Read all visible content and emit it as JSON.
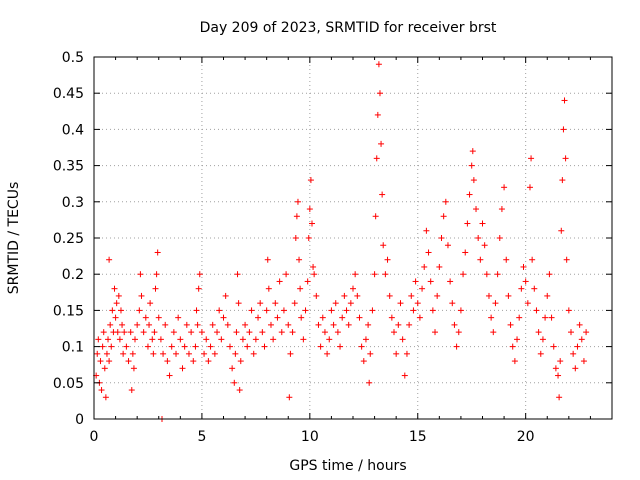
{
  "chart_data": {
    "type": "scatter",
    "title": "Day 209 of 2023, SRMTID for receiver brst",
    "xlabel": "GPS time / hours",
    "ylabel": "SRMTID / TECUs",
    "xlim": [
      0,
      24
    ],
    "ylim": [
      0,
      0.5
    ],
    "xticks": [
      0,
      5,
      10,
      15,
      20
    ],
    "xtick_labels": [
      "0",
      "5",
      "10",
      "15",
      "20"
    ],
    "yticks": [
      0,
      0.05,
      0.1,
      0.15,
      0.2,
      0.25,
      0.3,
      0.35,
      0.4,
      0.45,
      0.5
    ],
    "ytick_labels": [
      "0",
      "0.05",
      "0.1",
      "0.15",
      "0.2",
      "0.25",
      "0.3",
      "0.35",
      "0.4",
      "0.45",
      "0.5"
    ],
    "grid": true,
    "marker": "+",
    "series": [
      {
        "name": "SRMTID",
        "color": "#ff0000",
        "points": [
          [
            0.1,
            0.06
          ],
          [
            0.15,
            0.09
          ],
          [
            0.2,
            0.11
          ],
          [
            0.25,
            0.05
          ],
          [
            0.3,
            0.08
          ],
          [
            0.35,
            0.04
          ],
          [
            0.4,
            0.1
          ],
          [
            0.45,
            0.12
          ],
          [
            0.5,
            0.07
          ],
          [
            0.55,
            0.03
          ],
          [
            0.6,
            0.09
          ],
          [
            0.65,
            0.11
          ],
          [
            0.7,
            0.08
          ],
          [
            0.75,
            0.13
          ],
          [
            0.8,
            0.1
          ],
          [
            0.85,
            0.15
          ],
          [
            0.7,
            0.22
          ],
          [
            0.9,
            0.12
          ],
          [
            0.95,
            0.18
          ],
          [
            1.0,
            0.14
          ],
          [
            1.05,
            0.16
          ],
          [
            1.1,
            0.12
          ],
          [
            1.15,
            0.17
          ],
          [
            1.2,
            0.11
          ],
          [
            1.25,
            0.15
          ],
          [
            1.3,
            0.13
          ],
          [
            1.35,
            0.09
          ],
          [
            1.4,
            0.12
          ],
          [
            1.5,
            0.1
          ],
          [
            1.6,
            0.08
          ],
          [
            1.7,
            0.12
          ],
          [
            1.75,
            0.04
          ],
          [
            1.8,
            0.09
          ],
          [
            1.85,
            0.07
          ],
          [
            1.9,
            0.11
          ],
          [
            2.0,
            0.13
          ],
          [
            2.1,
            0.15
          ],
          [
            2.15,
            0.2
          ],
          [
            2.2,
            0.17
          ],
          [
            2.3,
            0.12
          ],
          [
            2.4,
            0.14
          ],
          [
            2.5,
            0.1
          ],
          [
            2.55,
            0.13
          ],
          [
            2.6,
            0.16
          ],
          [
            2.7,
            0.11
          ],
          [
            2.75,
            0.09
          ],
          [
            2.8,
            0.12
          ],
          [
            2.85,
            0.18
          ],
          [
            2.9,
            0.2
          ],
          [
            2.95,
            0.23
          ],
          [
            3.0,
            0.14
          ],
          [
            3.1,
            0.11
          ],
          [
            3.15,
            0.0
          ],
          [
            3.2,
            0.09
          ],
          [
            3.3,
            0.13
          ],
          [
            3.4,
            0.08
          ],
          [
            3.5,
            0.06
          ],
          [
            3.6,
            0.1
          ],
          [
            3.7,
            0.12
          ],
          [
            3.8,
            0.09
          ],
          [
            3.9,
            0.14
          ],
          [
            4.0,
            0.11
          ],
          [
            4.1,
            0.07
          ],
          [
            4.2,
            0.1
          ],
          [
            4.3,
            0.13
          ],
          [
            4.4,
            0.09
          ],
          [
            4.5,
            0.12
          ],
          [
            4.6,
            0.08
          ],
          [
            4.7,
            0.1
          ],
          [
            4.75,
            0.15
          ],
          [
            4.8,
            0.13
          ],
          [
            4.85,
            0.18
          ],
          [
            4.9,
            0.2
          ],
          [
            5.0,
            0.12
          ],
          [
            5.1,
            0.09
          ],
          [
            5.2,
            0.11
          ],
          [
            5.3,
            0.08
          ],
          [
            5.4,
            0.1
          ],
          [
            5.5,
            0.13
          ],
          [
            5.6,
            0.09
          ],
          [
            5.7,
            0.12
          ],
          [
            5.8,
            0.15
          ],
          [
            5.9,
            0.11
          ],
          [
            6.0,
            0.14
          ],
          [
            6.1,
            0.17
          ],
          [
            6.2,
            0.13
          ],
          [
            6.3,
            0.1
          ],
          [
            6.4,
            0.07
          ],
          [
            6.5,
            0.05
          ],
          [
            6.55,
            0.09
          ],
          [
            6.6,
            0.12
          ],
          [
            6.65,
            0.2
          ],
          [
            6.7,
            0.16
          ],
          [
            6.75,
            0.04
          ],
          [
            6.8,
            0.08
          ],
          [
            6.9,
            0.11
          ],
          [
            7.0,
            0.13
          ],
          [
            7.1,
            0.1
          ],
          [
            7.2,
            0.12
          ],
          [
            7.3,
            0.15
          ],
          [
            7.4,
            0.09
          ],
          [
            7.5,
            0.11
          ],
          [
            7.6,
            0.14
          ],
          [
            7.7,
            0.16
          ],
          [
            7.8,
            0.12
          ],
          [
            7.9,
            0.1
          ],
          [
            8.0,
            0.15
          ],
          [
            8.05,
            0.22
          ],
          [
            8.1,
            0.18
          ],
          [
            8.2,
            0.13
          ],
          [
            8.3,
            0.11
          ],
          [
            8.4,
            0.16
          ],
          [
            8.5,
            0.14
          ],
          [
            8.6,
            0.19
          ],
          [
            8.7,
            0.12
          ],
          [
            8.8,
            0.15
          ],
          [
            8.9,
            0.2
          ],
          [
            9.0,
            0.13
          ],
          [
            9.05,
            0.03
          ],
          [
            9.1,
            0.09
          ],
          [
            9.2,
            0.12
          ],
          [
            9.3,
            0.16
          ],
          [
            9.35,
            0.25
          ],
          [
            9.4,
            0.28
          ],
          [
            9.45,
            0.3
          ],
          [
            9.5,
            0.22
          ],
          [
            9.55,
            0.18
          ],
          [
            9.6,
            0.14
          ],
          [
            9.7,
            0.11
          ],
          [
            9.8,
            0.15
          ],
          [
            9.9,
            0.19
          ],
          [
            9.95,
            0.25
          ],
          [
            10.0,
            0.29
          ],
          [
            10.05,
            0.33
          ],
          [
            10.1,
            0.27
          ],
          [
            10.15,
            0.21
          ],
          [
            10.2,
            0.2
          ],
          [
            10.3,
            0.17
          ],
          [
            10.4,
            0.13
          ],
          [
            10.5,
            0.1
          ],
          [
            10.6,
            0.14
          ],
          [
            10.7,
            0.12
          ],
          [
            10.8,
            0.09
          ],
          [
            10.9,
            0.11
          ],
          [
            11.0,
            0.15
          ],
          [
            11.1,
            0.13
          ],
          [
            11.2,
            0.16
          ],
          [
            11.3,
            0.12
          ],
          [
            11.4,
            0.1
          ],
          [
            11.5,
            0.14
          ],
          [
            11.6,
            0.17
          ],
          [
            11.7,
            0.15
          ],
          [
            11.8,
            0.13
          ],
          [
            11.9,
            0.16
          ],
          [
            12.0,
            0.18
          ],
          [
            12.1,
            0.2
          ],
          [
            12.2,
            0.17
          ],
          [
            12.3,
            0.14
          ],
          [
            12.4,
            0.1
          ],
          [
            12.5,
            0.08
          ],
          [
            12.6,
            0.11
          ],
          [
            12.7,
            0.13
          ],
          [
            12.75,
            0.05
          ],
          [
            12.8,
            0.09
          ],
          [
            12.9,
            0.15
          ],
          [
            13.0,
            0.2
          ],
          [
            13.05,
            0.28
          ],
          [
            13.1,
            0.36
          ],
          [
            13.15,
            0.42
          ],
          [
            13.2,
            0.49
          ],
          [
            13.25,
            0.45
          ],
          [
            13.3,
            0.38
          ],
          [
            13.35,
            0.31
          ],
          [
            13.4,
            0.24
          ],
          [
            13.5,
            0.2
          ],
          [
            13.6,
            0.22
          ],
          [
            13.7,
            0.17
          ],
          [
            13.8,
            0.14
          ],
          [
            13.9,
            0.12
          ],
          [
            14.0,
            0.09
          ],
          [
            14.1,
            0.13
          ],
          [
            14.2,
            0.16
          ],
          [
            14.3,
            0.11
          ],
          [
            14.4,
            0.06
          ],
          [
            14.5,
            0.09
          ],
          [
            14.6,
            0.13
          ],
          [
            14.7,
            0.17
          ],
          [
            14.8,
            0.15
          ],
          [
            14.9,
            0.19
          ],
          [
            15.0,
            0.16
          ],
          [
            15.1,
            0.14
          ],
          [
            15.2,
            0.18
          ],
          [
            15.3,
            0.21
          ],
          [
            15.4,
            0.26
          ],
          [
            15.5,
            0.23
          ],
          [
            15.6,
            0.19
          ],
          [
            15.7,
            0.15
          ],
          [
            15.8,
            0.12
          ],
          [
            15.9,
            0.17
          ],
          [
            16.0,
            0.21
          ],
          [
            16.1,
            0.25
          ],
          [
            16.2,
            0.28
          ],
          [
            16.3,
            0.3
          ],
          [
            16.4,
            0.24
          ],
          [
            16.5,
            0.19
          ],
          [
            16.6,
            0.16
          ],
          [
            16.7,
            0.13
          ],
          [
            16.8,
            0.1
          ],
          [
            16.9,
            0.12
          ],
          [
            17.0,
            0.15
          ],
          [
            17.1,
            0.2
          ],
          [
            17.2,
            0.23
          ],
          [
            17.3,
            0.27
          ],
          [
            17.4,
            0.31
          ],
          [
            17.5,
            0.35
          ],
          [
            17.55,
            0.37
          ],
          [
            17.6,
            0.33
          ],
          [
            17.7,
            0.29
          ],
          [
            17.8,
            0.25
          ],
          [
            17.9,
            0.22
          ],
          [
            18.0,
            0.27
          ],
          [
            18.1,
            0.24
          ],
          [
            18.2,
            0.2
          ],
          [
            18.3,
            0.17
          ],
          [
            18.4,
            0.14
          ],
          [
            18.5,
            0.12
          ],
          [
            18.6,
            0.16
          ],
          [
            18.7,
            0.2
          ],
          [
            18.8,
            0.25
          ],
          [
            18.9,
            0.29
          ],
          [
            19.0,
            0.32
          ],
          [
            19.1,
            0.22
          ],
          [
            19.2,
            0.17
          ],
          [
            19.3,
            0.13
          ],
          [
            19.4,
            0.1
          ],
          [
            19.5,
            0.08
          ],
          [
            19.6,
            0.11
          ],
          [
            19.7,
            0.14
          ],
          [
            19.8,
            0.18
          ],
          [
            19.9,
            0.21
          ],
          [
            20.0,
            0.19
          ],
          [
            20.1,
            0.16
          ],
          [
            20.2,
            0.32
          ],
          [
            20.25,
            0.36
          ],
          [
            20.3,
            0.22
          ],
          [
            20.4,
            0.18
          ],
          [
            20.5,
            0.15
          ],
          [
            20.6,
            0.12
          ],
          [
            20.7,
            0.09
          ],
          [
            20.8,
            0.11
          ],
          [
            20.9,
            0.14
          ],
          [
            21.0,
            0.17
          ],
          [
            21.1,
            0.2
          ],
          [
            21.2,
            0.14
          ],
          [
            21.3,
            0.1
          ],
          [
            21.4,
            0.07
          ],
          [
            21.5,
            0.06
          ],
          [
            21.55,
            0.03
          ],
          [
            21.6,
            0.08
          ],
          [
            21.65,
            0.26
          ],
          [
            21.7,
            0.33
          ],
          [
            21.75,
            0.4
          ],
          [
            21.8,
            0.44
          ],
          [
            21.85,
            0.36
          ],
          [
            21.9,
            0.22
          ],
          [
            22.0,
            0.15
          ],
          [
            22.1,
            0.12
          ],
          [
            22.2,
            0.09
          ],
          [
            22.3,
            0.07
          ],
          [
            22.4,
            0.1
          ],
          [
            22.5,
            0.13
          ],
          [
            22.6,
            0.11
          ],
          [
            22.7,
            0.08
          ],
          [
            22.8,
            0.12
          ]
        ]
      }
    ]
  }
}
